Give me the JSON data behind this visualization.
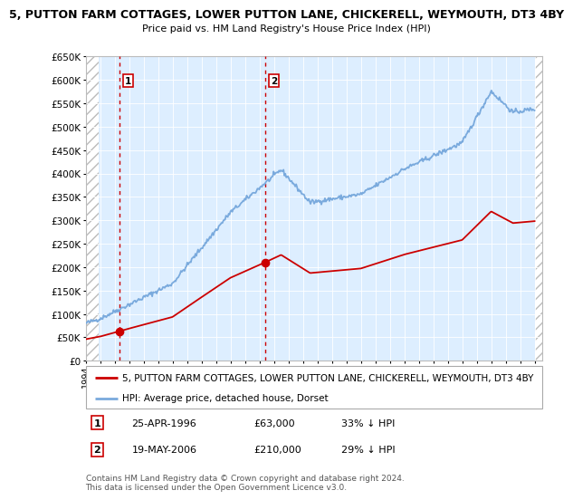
{
  "title1": "5, PUTTON FARM COTTAGES, LOWER PUTTON LANE, CHICKERELL, WEYMOUTH, DT3 4BY",
  "title2": "Price paid vs. HM Land Registry's House Price Index (HPI)",
  "ylim": [
    0,
    650000
  ],
  "yticks": [
    0,
    50000,
    100000,
    150000,
    200000,
    250000,
    300000,
    350000,
    400000,
    450000,
    500000,
    550000,
    600000,
    650000
  ],
  "ytick_labels": [
    "£0",
    "£50K",
    "£100K",
    "£150K",
    "£200K",
    "£250K",
    "£300K",
    "£350K",
    "£400K",
    "£450K",
    "£500K",
    "£550K",
    "£600K",
    "£650K"
  ],
  "xlim_start": 1994.0,
  "xlim_end": 2025.5,
  "sale1_year": 1996.31,
  "sale1_price": 63000,
  "sale2_year": 2006.38,
  "sale2_price": 210000,
  "hpi_color": "#7aaadd",
  "price_color": "#cc0000",
  "bg_color": "#ddeeff",
  "legend_label_price": "5, PUTTON FARM COTTAGES, LOWER PUTTON LANE, CHICKERELL, WEYMOUTH, DT3 4BY",
  "legend_label_hpi": "HPI: Average price, detached house, Dorset",
  "footnote": "Contains HM Land Registry data © Crown copyright and database right 2024.\nThis data is licensed under the Open Government Licence v3.0."
}
